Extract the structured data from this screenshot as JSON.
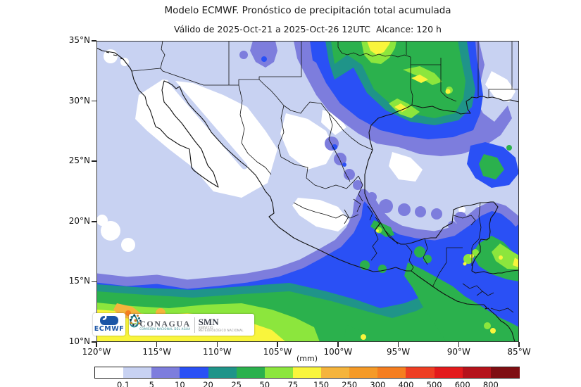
{
  "header": {
    "title": "Modelo ECMWF. Pronóstico de precipitación total acumulada",
    "subtitle": "Válido de 2025-Oct-21 a 2025-Oct-26 12UTC  Alcance: 120 h"
  },
  "axes": {
    "lat_ticks": [
      "35°N",
      "30°N",
      "25°N",
      "20°N",
      "15°N",
      "10°N"
    ],
    "lon_ticks": [
      "120°W",
      "115°W",
      "110°W",
      "105°W",
      "100°W",
      "95°W",
      "90°W",
      "85°W"
    ]
  },
  "colorbar": {
    "unit_label": "(mm)",
    "tick_values": [
      "0.1",
      "5",
      "10",
      "20",
      "25",
      "50",
      "75",
      "150",
      "250",
      "300",
      "400",
      "500",
      "600",
      "800"
    ],
    "segment_colors": [
      "#ffffff",
      "#c8d2f2",
      "#7d7ddd",
      "#2a50f5",
      "#1f9489",
      "#2bb14d",
      "#8ce63d",
      "#f9f53c",
      "#f5b43c",
      "#f59a27",
      "#f57e20",
      "#ee3e23",
      "#e31a1c",
      "#b5121b",
      "#7f0e12"
    ]
  },
  "logos": {
    "ecmwf": {
      "text": "ECMWF"
    },
    "conagua": {
      "name": "CONAGUA",
      "subtitle": "COMISIÓN NACIONAL DEL AGUA"
    },
    "smn": {
      "name": "SMN",
      "subtitle1": "SERVICIO",
      "subtitle2": "METEOROLÓGICO NACIONAL"
    }
  },
  "map": {
    "extent": {
      "lon_min": "120°W",
      "lon_max": "85°W",
      "lat_min": "10°N",
      "lat_max": "35°N"
    },
    "regions_depicted": [
      {
        "area": "Texas y Luisiana (EUA)",
        "precip_mm": "50–150 (verde/amarillo)"
      },
      {
        "area": "Noroeste de México y Baja California",
        "precip_mm": "0–5 (blanco/lila)"
      },
      {
        "area": "Franja tropical del Pacífico 10–15°N",
        "precip_mm": "75–300 (amarillo/naranja)"
      },
      {
        "area": "Sur-sureste de México y Centroamérica",
        "precip_mm": "10–75 (azul/verde)"
      },
      {
        "area": "Golfo de México",
        "precip_mm": "5–25 (lila/azul)"
      }
    ]
  }
}
